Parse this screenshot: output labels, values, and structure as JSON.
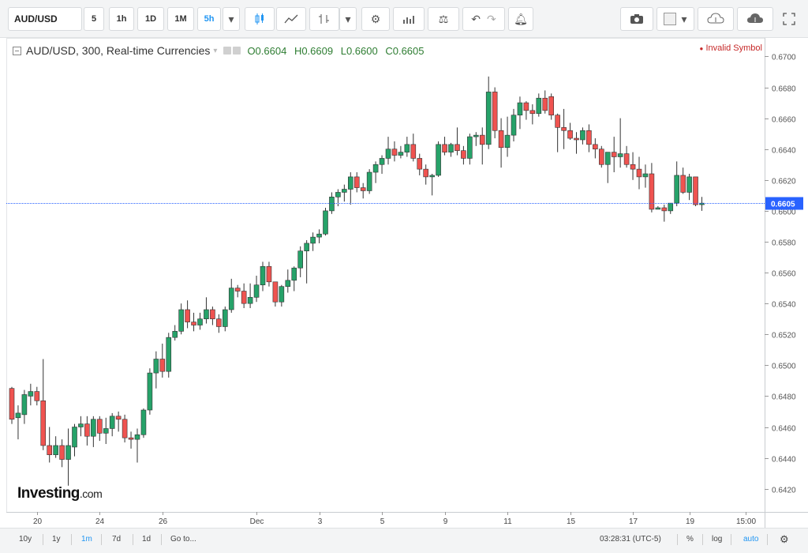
{
  "toolbar": {
    "symbol": "AUD/USD",
    "intervals": [
      "5",
      "1h",
      "1D",
      "1M",
      "5h"
    ],
    "active_interval": "5h"
  },
  "legend": {
    "title": "AUD/USD, 300, Real-time Currencies",
    "o": "O0.6604",
    "h": "H0.6609",
    "l": "L0.6600",
    "c": "C0.6605",
    "invalid": "Invalid Symbol"
  },
  "logo": {
    "main": "Investing",
    "suffix": ".com"
  },
  "bottom": {
    "ranges": [
      "10y",
      "1y",
      "1m",
      "7d",
      "1d"
    ],
    "active_range": "1m",
    "goto": "Go to...",
    "time": "03:28:31 (UTC-5)",
    "percent": "%",
    "log": "log",
    "auto": "auto"
  },
  "colors": {
    "up": "#26a269",
    "down": "#ef5350",
    "last_price": "#2962ff"
  },
  "chart_data": {
    "type": "candlestick",
    "ylim": [
      0.6405,
      0.6712
    ],
    "y_ticks": [
      0.642,
      0.644,
      0.646,
      0.648,
      0.65,
      0.652,
      0.654,
      0.656,
      0.658,
      0.66,
      0.662,
      0.664,
      0.666,
      0.668,
      0.67
    ],
    "x_ticks": [
      {
        "label": "20",
        "index": 4
      },
      {
        "label": "24",
        "index": 14
      },
      {
        "label": "26",
        "index": 24
      },
      {
        "label": "Dec",
        "index": 39
      },
      {
        "label": "3",
        "index": 49
      },
      {
        "label": "5",
        "index": 59
      },
      {
        "label": "9",
        "index": 69
      },
      {
        "label": "11",
        "index": 79
      },
      {
        "label": "15",
        "index": 89
      },
      {
        "label": "17",
        "index": 99
      },
      {
        "label": "19",
        "index": 108
      },
      {
        "label": "15:00",
        "index": 117
      }
    ],
    "last_price": 0.6605,
    "last_price_label": "0.6605",
    "candles": [
      [
        0.6485,
        0.6486,
        0.6462,
        0.6465
      ],
      [
        0.6466,
        0.6474,
        0.6452,
        0.6469
      ],
      [
        0.6468,
        0.6484,
        0.6462,
        0.6481
      ],
      [
        0.648,
        0.6488,
        0.6474,
        0.6483
      ],
      [
        0.6483,
        0.6486,
        0.6474,
        0.6477
      ],
      [
        0.6477,
        0.6504,
        0.6445,
        0.6448
      ],
      [
        0.6448,
        0.646,
        0.6437,
        0.6442
      ],
      [
        0.6442,
        0.6454,
        0.644,
        0.6448
      ],
      [
        0.6448,
        0.6452,
        0.6434,
        0.6439
      ],
      [
        0.6439,
        0.6459,
        0.6422,
        0.6448
      ],
      [
        0.6447,
        0.6462,
        0.6441,
        0.646
      ],
      [
        0.646,
        0.6467,
        0.6454,
        0.6462
      ],
      [
        0.6462,
        0.6467,
        0.6448,
        0.6454
      ],
      [
        0.6454,
        0.6467,
        0.6447,
        0.6465
      ],
      [
        0.6465,
        0.6467,
        0.6451,
        0.6456
      ],
      [
        0.6456,
        0.6466,
        0.6449,
        0.6459
      ],
      [
        0.6459,
        0.6469,
        0.6454,
        0.6467
      ],
      [
        0.6467,
        0.647,
        0.6457,
        0.6465
      ],
      [
        0.6465,
        0.6468,
        0.645,
        0.6453
      ],
      [
        0.6453,
        0.6457,
        0.6446,
        0.6452
      ],
      [
        0.6452,
        0.6459,
        0.6437,
        0.6455
      ],
      [
        0.6455,
        0.6472,
        0.6453,
        0.6471
      ],
      [
        0.6471,
        0.6498,
        0.6468,
        0.6495
      ],
      [
        0.6495,
        0.6509,
        0.6485,
        0.6504
      ],
      [
        0.6504,
        0.6514,
        0.6492,
        0.6496
      ],
      [
        0.6496,
        0.6521,
        0.6492,
        0.6518
      ],
      [
        0.6518,
        0.6526,
        0.6516,
        0.6522
      ],
      [
        0.6522,
        0.654,
        0.652,
        0.6536
      ],
      [
        0.6536,
        0.6542,
        0.6524,
        0.6528
      ],
      [
        0.6528,
        0.6534,
        0.6522,
        0.6526
      ],
      [
        0.6526,
        0.6534,
        0.6523,
        0.653
      ],
      [
        0.653,
        0.6544,
        0.6527,
        0.6536
      ],
      [
        0.6536,
        0.6538,
        0.6526,
        0.653
      ],
      [
        0.653,
        0.6533,
        0.6521,
        0.6525
      ],
      [
        0.6525,
        0.6538,
        0.6522,
        0.6536
      ],
      [
        0.6536,
        0.6556,
        0.6534,
        0.655
      ],
      [
        0.655,
        0.6552,
        0.6544,
        0.6548
      ],
      [
        0.6548,
        0.6553,
        0.6537,
        0.654
      ],
      [
        0.654,
        0.6553,
        0.6537,
        0.6544
      ],
      [
        0.6544,
        0.6558,
        0.6541,
        0.6552
      ],
      [
        0.6552,
        0.6567,
        0.6548,
        0.6564
      ],
      [
        0.6564,
        0.6567,
        0.6551,
        0.6554
      ],
      [
        0.6554,
        0.6554,
        0.6538,
        0.6541
      ],
      [
        0.6541,
        0.6552,
        0.6538,
        0.6551
      ],
      [
        0.6551,
        0.6562,
        0.6547,
        0.6555
      ],
      [
        0.6555,
        0.6564,
        0.6548,
        0.6563
      ],
      [
        0.6563,
        0.6577,
        0.6557,
        0.6574
      ],
      [
        0.6574,
        0.6581,
        0.6553,
        0.6579
      ],
      [
        0.6579,
        0.6586,
        0.6574,
        0.6583
      ],
      [
        0.6583,
        0.6588,
        0.6579,
        0.6585
      ],
      [
        0.6585,
        0.6602,
        0.6584,
        0.66
      ],
      [
        0.66,
        0.6612,
        0.6598,
        0.6609
      ],
      [
        0.6609,
        0.6614,
        0.6603,
        0.6612
      ],
      [
        0.6612,
        0.6617,
        0.6606,
        0.6614
      ],
      [
        0.6614,
        0.6625,
        0.6604,
        0.6622
      ],
      [
        0.6622,
        0.6625,
        0.6612,
        0.6615
      ],
      [
        0.6615,
        0.6618,
        0.6608,
        0.6613
      ],
      [
        0.6613,
        0.6627,
        0.6611,
        0.6625
      ],
      [
        0.6625,
        0.6632,
        0.6618,
        0.663
      ],
      [
        0.663,
        0.6636,
        0.6624,
        0.6634
      ],
      [
        0.6634,
        0.6648,
        0.663,
        0.664
      ],
      [
        0.664,
        0.6645,
        0.6632,
        0.6636
      ],
      [
        0.6636,
        0.6642,
        0.6634,
        0.6638
      ],
      [
        0.6638,
        0.6648,
        0.6635,
        0.6643
      ],
      [
        0.6643,
        0.665,
        0.6632,
        0.6634
      ],
      [
        0.6634,
        0.6637,
        0.6623,
        0.6627
      ],
      [
        0.6627,
        0.663,
        0.6617,
        0.6622
      ],
      [
        0.6622,
        0.6624,
        0.661,
        0.6623
      ],
      [
        0.6623,
        0.6645,
        0.6622,
        0.6643
      ],
      [
        0.6643,
        0.6648,
        0.6636,
        0.6638
      ],
      [
        0.6638,
        0.6644,
        0.6635,
        0.6643
      ],
      [
        0.6643,
        0.6654,
        0.6636,
        0.6639
      ],
      [
        0.6639,
        0.6642,
        0.663,
        0.6634
      ],
      [
        0.6634,
        0.665,
        0.663,
        0.6648
      ],
      [
        0.6648,
        0.6651,
        0.6642,
        0.6649
      ],
      [
        0.6649,
        0.6654,
        0.663,
        0.6643
      ],
      [
        0.6643,
        0.6687,
        0.664,
        0.6677
      ],
      [
        0.6677,
        0.668,
        0.6647,
        0.6652
      ],
      [
        0.6652,
        0.666,
        0.6628,
        0.6641
      ],
      [
        0.6641,
        0.6661,
        0.6635,
        0.6649
      ],
      [
        0.6649,
        0.6666,
        0.6645,
        0.6662
      ],
      [
        0.6662,
        0.6674,
        0.6653,
        0.667
      ],
      [
        0.667,
        0.6671,
        0.6659,
        0.6665
      ],
      [
        0.6665,
        0.6669,
        0.6656,
        0.6663
      ],
      [
        0.6663,
        0.6676,
        0.6661,
        0.6673
      ],
      [
        0.6673,
        0.6678,
        0.6663,
        0.6665
      ],
      [
        0.6674,
        0.6676,
        0.6659,
        0.6662
      ],
      [
        0.6662,
        0.6663,
        0.6638,
        0.6654
      ],
      [
        0.6654,
        0.6666,
        0.664,
        0.6652
      ],
      [
        0.6652,
        0.6657,
        0.6646,
        0.6647
      ],
      [
        0.6647,
        0.6651,
        0.6637,
        0.6646
      ],
      [
        0.6646,
        0.6654,
        0.6643,
        0.6652
      ],
      [
        0.6652,
        0.6656,
        0.6638,
        0.6643
      ],
      [
        0.6643,
        0.6647,
        0.6634,
        0.664
      ],
      [
        0.664,
        0.6642,
        0.6628,
        0.663
      ],
      [
        0.663,
        0.6636,
        0.6618,
        0.6638
      ],
      [
        0.6638,
        0.6648,
        0.6625,
        0.6635
      ],
      [
        0.6635,
        0.666,
        0.6628,
        0.6637
      ],
      [
        0.6637,
        0.6642,
        0.6628,
        0.663
      ],
      [
        0.663,
        0.6638,
        0.662,
        0.6627
      ],
      [
        0.6627,
        0.6635,
        0.6614,
        0.6622
      ],
      [
        0.6622,
        0.663,
        0.6615,
        0.6624
      ],
      [
        0.6624,
        0.6631,
        0.6599,
        0.6601
      ],
      [
        0.6601,
        0.6603,
        0.6601,
        0.6602
      ],
      [
        0.6602,
        0.6604,
        0.6593,
        0.66
      ],
      [
        0.66,
        0.6605,
        0.6598,
        0.6605
      ],
      [
        0.6605,
        0.6632,
        0.6603,
        0.6623
      ],
      [
        0.6623,
        0.6628,
        0.6611,
        0.6612
      ],
      [
        0.6612,
        0.6624,
        0.6607,
        0.6622
      ],
      [
        0.6622,
        0.6622,
        0.6603,
        0.6604
      ],
      [
        0.6604,
        0.6609,
        0.66,
        0.6605
      ]
    ]
  }
}
